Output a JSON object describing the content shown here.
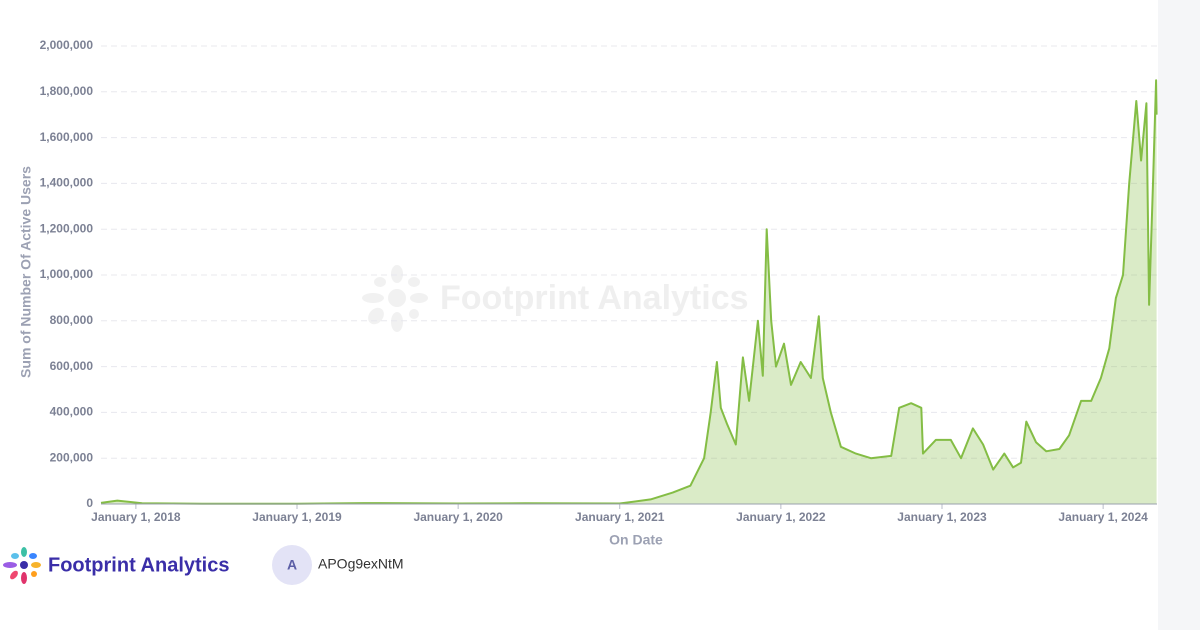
{
  "chart_data": {
    "type": "area",
    "watermark": "Footprint Analytics",
    "x_label": "On Date",
    "y_label": "Sum of Number Of Active Users",
    "color": "#84bd45",
    "grid": true,
    "xlim": [
      "2017-10-14",
      "2024-05-02"
    ],
    "xticks": [
      {
        "value": "2018-01-01",
        "label": "January 1, 2018"
      },
      {
        "value": "2019-01-01",
        "label": "January 1, 2019"
      },
      {
        "value": "2020-01-01",
        "label": "January 1, 2020"
      },
      {
        "value": "2021-01-01",
        "label": "January 1, 2021"
      },
      {
        "value": "2022-01-01",
        "label": "January 1, 2022"
      },
      {
        "value": "2023-01-01",
        "label": "January 1, 2023"
      },
      {
        "value": "2024-01-01",
        "label": "January 1, 2024"
      }
    ],
    "ylim": [
      0,
      2000000
    ],
    "yticks": [
      0,
      {
        "value": 200000,
        "label": "200,000"
      },
      {
        "value": 400000,
        "label": "400,000"
      },
      {
        "value": 600000,
        "label": "600,000"
      },
      {
        "value": 800000,
        "label": "800,000"
      },
      {
        "value": 1000000,
        "label": "1,000,000"
      },
      {
        "value": 1200000,
        "label": "1,200,000"
      },
      {
        "value": 1400000,
        "label": "1,400,000"
      },
      {
        "value": 1600000,
        "label": "1,600,000"
      },
      {
        "value": 1800000,
        "label": "1,800,000"
      },
      {
        "value": 2000000,
        "label": "2,000,000"
      }
    ],
    "x": [
      "2017-10-14",
      "2017-11-20",
      "2018-01-15",
      "2018-06-01",
      "2019-01-01",
      "2019-06-01",
      "2020-01-01",
      "2020-06-01",
      "2021-01-01",
      "2021-03-12",
      "2021-05-01",
      "2021-06-10",
      "2021-07-11",
      "2021-07-26",
      "2021-08-09",
      "2021-08-18",
      "2021-09-01",
      "2021-09-21",
      "2021-10-07",
      "2021-10-21",
      "2021-11-10",
      "2021-11-21",
      "2021-11-30",
      "2021-12-10",
      "2021-12-21",
      "2022-01-08",
      "2022-01-24",
      "2022-02-15",
      "2022-03-10",
      "2022-03-28",
      "2022-04-06",
      "2022-04-24",
      "2022-05-17",
      "2022-06-20",
      "2022-07-24",
      "2022-09-08",
      "2022-09-26",
      "2022-10-23",
      "2022-11-15",
      "2022-11-19",
      "2022-12-18",
      "2023-01-21",
      "2023-02-13",
      "2023-03-12",
      "2023-04-04",
      "2023-04-27",
      "2023-05-22",
      "2023-06-11",
      "2023-06-29",
      "2023-07-11",
      "2023-08-02",
      "2023-08-25",
      "2023-09-24",
      "2023-10-16",
      "2023-11-12",
      "2023-12-05",
      "2023-12-27",
      "2024-01-15",
      "2024-01-30",
      "2024-02-15",
      "2024-02-29",
      "2024-03-16",
      "2024-03-27",
      "2024-04-08",
      "2024-04-14",
      "2024-04-23",
      "2024-04-30",
      "2024-05-01"
    ],
    "series": [
      {
        "name": "Sum of Number Of Active Users",
        "values": [
          5000,
          15000,
          3000,
          1000,
          1000,
          4000,
          2000,
          3000,
          2000,
          20000,
          50000,
          80000,
          200000,
          400000,
          620000,
          420000,
          350000,
          260000,
          640000,
          450000,
          800000,
          560000,
          1200000,
          800000,
          600000,
          700000,
          520000,
          620000,
          550000,
          820000,
          550000,
          400000,
          250000,
          220000,
          200000,
          210000,
          420000,
          440000,
          420000,
          220000,
          280000,
          280000,
          200000,
          330000,
          260000,
          150000,
          220000,
          160000,
          180000,
          360000,
          270000,
          230000,
          240000,
          300000,
          450000,
          450000,
          550000,
          680000,
          900000,
          1000000,
          1400000,
          1760000,
          1500000,
          1750000,
          870000,
          1400000,
          1850000,
          1700000
        ]
      }
    ]
  },
  "footer": {
    "brand": "Footprint Analytics",
    "avatar": "A",
    "user": "APOg9exNtM"
  }
}
